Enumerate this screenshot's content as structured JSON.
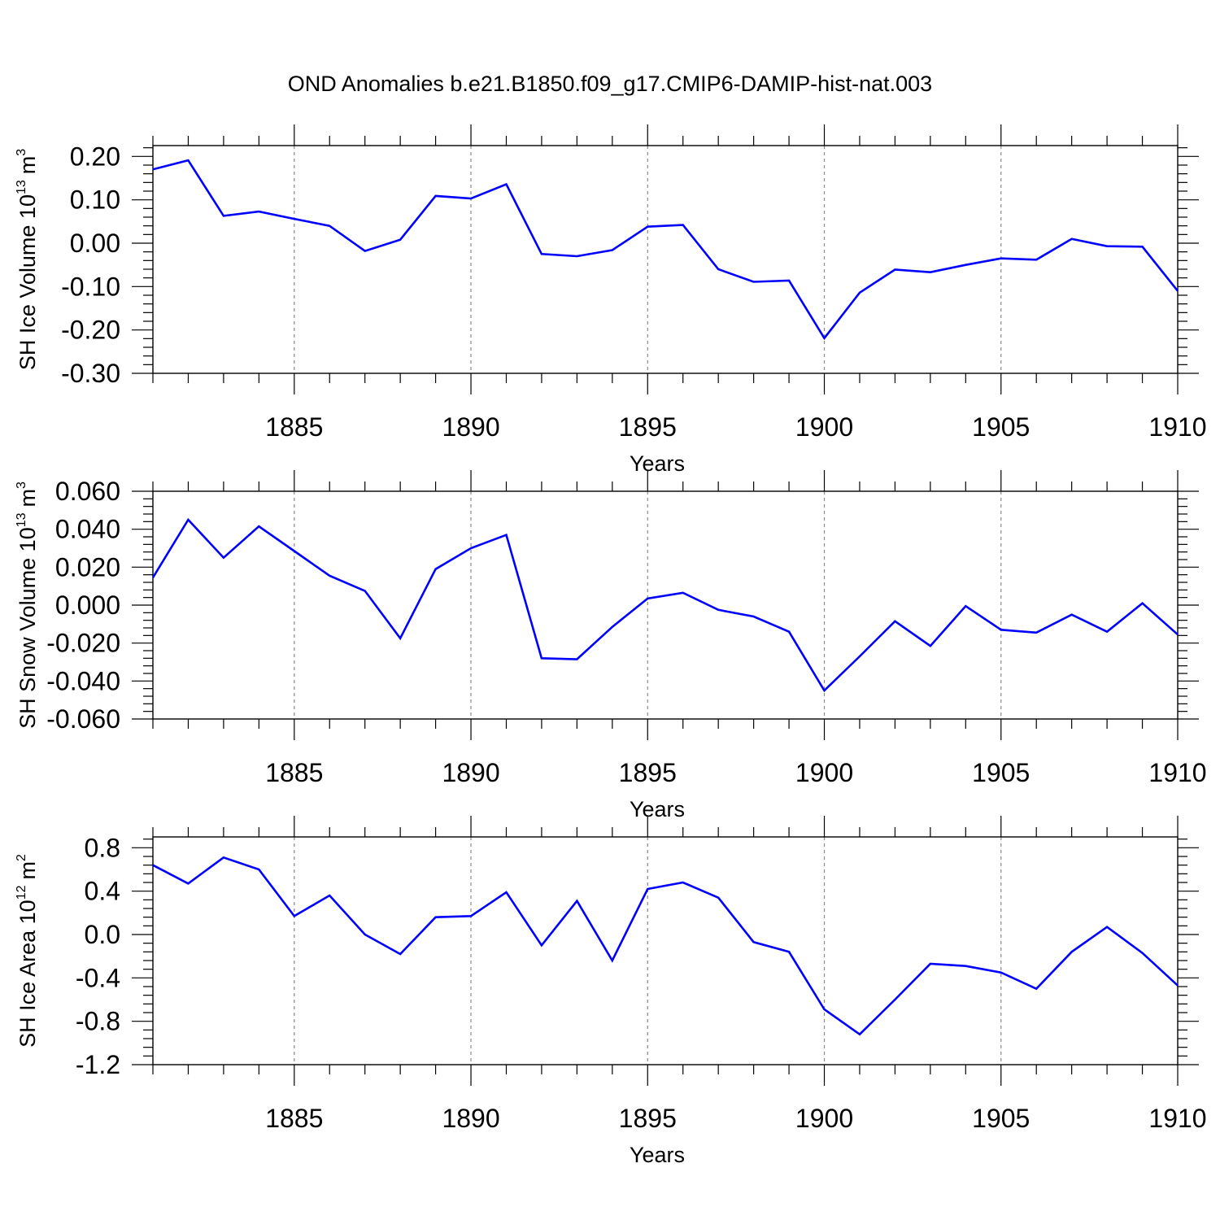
{
  "title": "OND Anomalies b.e21.B1850.f09_g17.CMIP6-DAMIP-hist-nat.003",
  "chart_data": [
    {
      "type": "line",
      "title": "",
      "xlabel": "Years",
      "ylabel": "SH Ice Volume 10",
      "ylabel_exp": "13",
      "ylabel_unit": "m",
      "ylabel_unit_exp": "3",
      "xlim": [
        1881,
        1910
      ],
      "ylim": [
        -0.3,
        0.225
      ],
      "xticks": [
        1885,
        1890,
        1895,
        1900,
        1905,
        1910
      ],
      "xtick_labels": [
        "1885",
        "1890",
        "1895",
        "1900",
        "1905",
        "1910"
      ],
      "yticks": [
        -0.3,
        -0.2,
        -0.1,
        0.0,
        0.1,
        0.2
      ],
      "ytick_labels": [
        "-0.30",
        "-0.20",
        "-0.10",
        "0.00",
        "0.10",
        "0.20"
      ],
      "grid": "vertical dashed at major ticks",
      "color": "#0000ff",
      "series": [
        {
          "x": [
            1881,
            1882,
            1883,
            1884,
            1885,
            1886,
            1887,
            1888,
            1889,
            1890,
            1891,
            1892,
            1893,
            1894,
            1895,
            1896,
            1897,
            1898,
            1899,
            1900,
            1901,
            1902,
            1903,
            1904,
            1905,
            1906,
            1907,
            1908,
            1909,
            1910
          ],
          "values": [
            0.17,
            0.191,
            0.063,
            0.073,
            0.056,
            0.04,
            -0.018,
            0.008,
            0.109,
            0.103,
            0.136,
            -0.025,
            -0.03,
            -0.016,
            0.038,
            0.042,
            -0.06,
            -0.089,
            -0.086,
            -0.219,
            -0.114,
            -0.061,
            -0.067,
            -0.05,
            -0.035,
            -0.038,
            0.01,
            -0.007,
            -0.008,
            -0.11
          ]
        }
      ]
    },
    {
      "type": "line",
      "title": "",
      "xlabel": "Years",
      "ylabel": "SH Snow Volume 10",
      "ylabel_exp": "13",
      "ylabel_unit": "m",
      "ylabel_unit_exp": "3",
      "xlim": [
        1881,
        1910
      ],
      "ylim": [
        -0.06,
        0.06
      ],
      "xticks": [
        1885,
        1890,
        1895,
        1900,
        1905,
        1910
      ],
      "xtick_labels": [
        "1885",
        "1890",
        "1895",
        "1900",
        "1905",
        "1910"
      ],
      "yticks": [
        -0.06,
        -0.04,
        -0.02,
        0.0,
        0.02,
        0.04,
        0.06
      ],
      "ytick_labels": [
        "-0.060",
        "-0.040",
        "-0.020",
        "0.000",
        "0.020",
        "0.040",
        "0.060"
      ],
      "grid": "vertical dashed at major ticks",
      "color": "#0000ff",
      "series": [
        {
          "x": [
            1881,
            1882,
            1883,
            1884,
            1885,
            1886,
            1887,
            1888,
            1889,
            1890,
            1891,
            1892,
            1893,
            1894,
            1895,
            1896,
            1897,
            1898,
            1899,
            1900,
            1901,
            1902,
            1903,
            1904,
            1905,
            1906,
            1907,
            1908,
            1909,
            1910
          ],
          "values": [
            0.0145,
            0.045,
            0.025,
            0.0415,
            0.0285,
            0.0155,
            0.0075,
            -0.0175,
            0.019,
            0.03,
            0.037,
            -0.028,
            -0.0285,
            -0.0115,
            0.0035,
            0.0065,
            -0.0025,
            -0.006,
            -0.014,
            -0.045,
            -0.027,
            -0.0085,
            -0.0215,
            -0.0005,
            -0.013,
            -0.0145,
            -0.005,
            -0.014,
            0.001,
            -0.0155
          ]
        }
      ]
    },
    {
      "type": "line",
      "title": "",
      "xlabel": "Years",
      "ylabel": "SH Ice Area 10",
      "ylabel_exp": "12",
      "ylabel_unit": "m",
      "ylabel_unit_exp": "2",
      "xlim": [
        1881,
        1910
      ],
      "ylim": [
        -1.2,
        0.9
      ],
      "xticks": [
        1885,
        1890,
        1895,
        1900,
        1905,
        1910
      ],
      "xtick_labels": [
        "1885",
        "1890",
        "1895",
        "1900",
        "1905",
        "1910"
      ],
      "yticks": [
        -1.2,
        -0.8,
        -0.4,
        0.0,
        0.4,
        0.8
      ],
      "ytick_labels": [
        "-1.2",
        "-0.8",
        "-0.4",
        "0.0",
        "0.4",
        "0.8"
      ],
      "grid": "vertical dashed at major ticks",
      "color": "#0000ff",
      "series": [
        {
          "x": [
            1881,
            1882,
            1883,
            1884,
            1885,
            1886,
            1887,
            1888,
            1889,
            1890,
            1891,
            1892,
            1893,
            1894,
            1895,
            1896,
            1897,
            1898,
            1899,
            1900,
            1901,
            1902,
            1903,
            1904,
            1905,
            1906,
            1907,
            1908,
            1909,
            1910
          ],
          "values": [
            0.64,
            0.47,
            0.71,
            0.6,
            0.17,
            0.36,
            0.0,
            -0.18,
            0.16,
            0.17,
            0.39,
            -0.1,
            0.31,
            -0.24,
            0.42,
            0.48,
            0.34,
            -0.07,
            -0.16,
            -0.69,
            -0.92,
            -0.6,
            -0.27,
            -0.29,
            -0.35,
            -0.5,
            -0.16,
            0.07,
            -0.17,
            -0.47
          ]
        }
      ]
    }
  ]
}
